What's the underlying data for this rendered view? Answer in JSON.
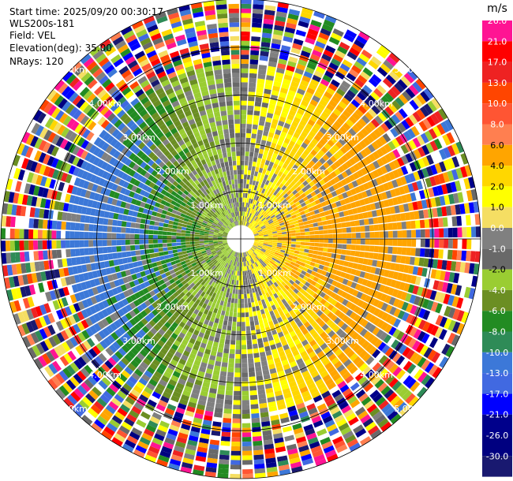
{
  "header": {
    "start_time": "Start time: 2025/09/20 00:30:17",
    "instrument": "WLS200s-181",
    "field": "Field: VEL",
    "elevation": "Elevation(deg): 35.00",
    "nrays": "NRays: 120"
  },
  "chart_data": {
    "type": "heatmap",
    "projection": "polar-ppi",
    "n_rays": 120,
    "range_rings_km": [
      1,
      2,
      3,
      4,
      5
    ],
    "range_labels": [
      "1.00km",
      "2.00km",
      "3.00km",
      "4.00km",
      "5.00km"
    ],
    "colorbar": {
      "unit": "m/s",
      "tick_labels": [
        "26.0",
        "21.0",
        "17.0",
        "13.0",
        "10.0",
        "8.0",
        "6.0",
        "4.0",
        "2.0",
        "1.0",
        "0.0",
        "-1.0",
        "-2.0",
        "-4.0",
        "-6.0",
        "-8.0",
        "-10.0",
        "-13.0",
        "-17.0",
        "-21.0",
        "-26.0",
        "-30.0"
      ],
      "colors": [
        "#ff1493",
        "#ff0000",
        "#ee2222",
        "#ff4500",
        "#ff5533",
        "#ff7f50",
        "#ffa500",
        "#ffd700",
        "#ffff00",
        "#f5de63",
        "#808080",
        "#696969",
        "#9acd32",
        "#6b8e23",
        "#228b22",
        "#2e8b57",
        "#3c78d8",
        "#4169e1",
        "#0000ff",
        "#00008b",
        "#000080",
        "#191970"
      ]
    }
  }
}
